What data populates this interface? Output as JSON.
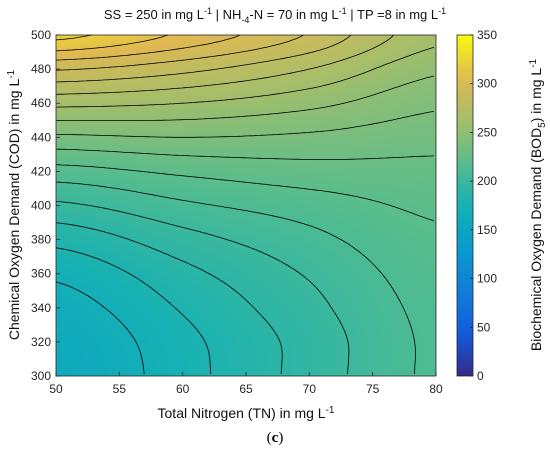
{
  "panel": {
    "open": "(",
    "letter": "c",
    "close": ")"
  },
  "chart_data": {
    "type": "heatmap",
    "title": {
      "ss_prefix": "SS = 250 in mg L",
      "ss_exp": "-1",
      "nh_prefix": " | NH",
      "nh_sub": "-4",
      "nh_mid": "-N = 70 in mg L",
      "nh_exp": "-1",
      "tp_prefix": " | TP =8 in mg L",
      "tp_exp": "-1"
    },
    "xlabel": {
      "main": "Total Nitrogen (TN) in mg L",
      "exp": "-1"
    },
    "ylabel": {
      "main": "Chemical Oxygen Demand (COD) in mg L",
      "exp": "-1"
    },
    "colorbar_label": {
      "pre": "Biochemical Oxygen Demand (BOD",
      "sub": "5",
      "post": ") in mg L",
      "exp": "-1"
    },
    "xlim": [
      50,
      80
    ],
    "ylim": [
      300,
      500
    ],
    "clim": [
      0,
      350
    ],
    "x_ticks": [
      50,
      55,
      60,
      65,
      70,
      75,
      80
    ],
    "y_ticks": [
      300,
      320,
      340,
      360,
      380,
      400,
      420,
      440,
      460,
      480,
      500
    ],
    "colorbar_ticks": [
      0,
      50,
      100,
      150,
      200,
      250,
      300,
      350
    ],
    "colormap": "parula",
    "contour_levels": [
      170,
      180,
      190,
      200,
      210,
      220,
      230,
      240,
      250,
      260,
      270,
      280,
      290,
      300,
      310,
      320
    ],
    "grid": [
      {
        "x": 50,
        "values": {
          "300": 158,
          "320": 160,
          "340": 165,
          "360": 172,
          "380": 183,
          "400": 198,
          "420": 216,
          "440": 238,
          "460": 263,
          "480": 291,
          "500": 323
        }
      },
      {
        "x": 60,
        "values": {
          "300": 176,
          "320": 177,
          "340": 181,
          "360": 187,
          "380": 196,
          "400": 208,
          "420": 222,
          "440": 240,
          "460": 260,
          "480": 283,
          "500": 308
        }
      },
      {
        "x": 70,
        "values": {
          "300": 194,
          "320": 194,
          "340": 197,
          "360": 201,
          "380": 207,
          "400": 215,
          "420": 226,
          "440": 238,
          "460": 253,
          "480": 270,
          "500": 289
        }
      },
      {
        "x": 80,
        "values": {
          "300": 212,
          "320": 212,
          "340": 213,
          "360": 215,
          "380": 218,
          "400": 222,
          "420": 227,
          "440": 234,
          "460": 242,
          "480": 252,
          "500": 263
        }
      }
    ]
  }
}
